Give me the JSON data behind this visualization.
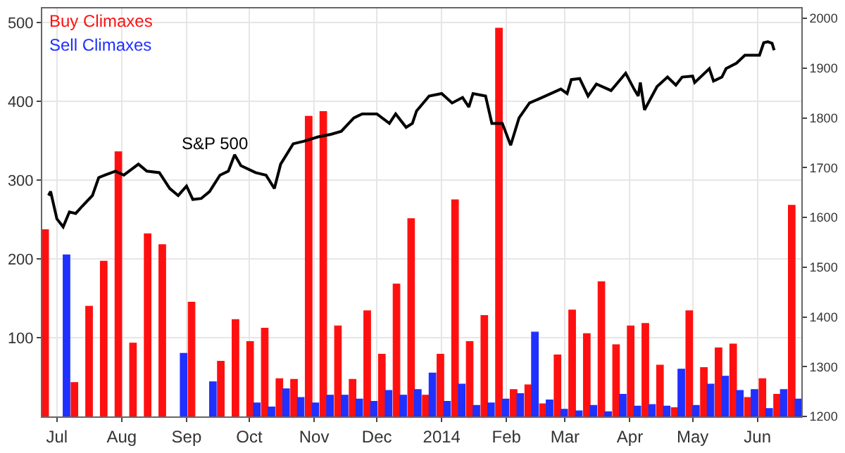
{
  "chart_data": {
    "type": "bar",
    "x": [
      "2013-06-27",
      "2013-07-04",
      "2013-07-11",
      "2013-07-18",
      "2013-07-25",
      "2013-08-01",
      "2013-08-08",
      "2013-08-15",
      "2013-08-22",
      "2013-08-29",
      "2013-09-05",
      "2013-09-12",
      "2013-09-19",
      "2013-09-26",
      "2013-10-03",
      "2013-10-10",
      "2013-10-17",
      "2013-10-24",
      "2013-10-31",
      "2013-11-07",
      "2013-11-14",
      "2013-11-21",
      "2013-11-28",
      "2013-12-05",
      "2013-12-12",
      "2013-12-19",
      "2013-12-26",
      "2014-01-02",
      "2014-01-09",
      "2014-01-16",
      "2014-01-23",
      "2014-01-30",
      "2014-02-06",
      "2014-02-13",
      "2014-02-20",
      "2014-02-27",
      "2014-03-06",
      "2014-03-13",
      "2014-03-20",
      "2014-03-27",
      "2014-04-03",
      "2014-04-10",
      "2014-04-17",
      "2014-04-24",
      "2014-05-01",
      "2014-05-08",
      "2014-05-15",
      "2014-05-22",
      "2014-05-29",
      "2014-06-05",
      "2014-06-12",
      "2014-06-19"
    ],
    "series": [
      {
        "name": "Buy Climaxes",
        "color": "#ff1010",
        "values": [
          237,
          null,
          43,
          140,
          197,
          336,
          93,
          232,
          218,
          null,
          145,
          null,
          70,
          123,
          95,
          112,
          48,
          47,
          381,
          387,
          115,
          47,
          134,
          79,
          168,
          251,
          27,
          79,
          275,
          95,
          128,
          493,
          34,
          40,
          16,
          78,
          135,
          105,
          171,
          91,
          115,
          118,
          65,
          11,
          134,
          62,
          87,
          92,
          24,
          48,
          28,
          268
        ]
      },
      {
        "name": "Sell Climaxes",
        "color": "#2030ff",
        "values": [
          null,
          205,
          null,
          null,
          null,
          null,
          null,
          null,
          null,
          80,
          null,
          44,
          null,
          null,
          17,
          12,
          35,
          24,
          17,
          27,
          27,
          22,
          19,
          33,
          27,
          34,
          55,
          19,
          41,
          14,
          17,
          22,
          29,
          107,
          21,
          9,
          7,
          14,
          6,
          28,
          13,
          15,
          13,
          60,
          14,
          41,
          51,
          33,
          34,
          10,
          34,
          22
        ]
      },
      {
        "name": "S&P 500",
        "color": "#000000",
        "type": "line",
        "axis": "y2",
        "x": [
          "2013-06-27",
          "2013-06-28",
          "2013-07-01",
          "2013-07-04",
          "2013-07-07",
          "2013-07-10",
          "2013-07-13",
          "2013-07-18",
          "2013-07-21",
          "2013-07-24",
          "2013-07-29",
          "2013-08-02",
          "2013-08-09",
          "2013-08-13",
          "2013-08-19",
          "2013-08-24",
          "2013-08-28",
          "2013-09-01",
          "2013-09-04",
          "2013-09-08",
          "2013-09-12",
          "2013-09-17",
          "2013-09-21",
          "2013-09-24",
          "2013-09-27",
          "2013-10-04",
          "2013-10-09",
          "2013-10-13",
          "2013-10-16",
          "2013-10-22",
          "2013-10-27",
          "2013-11-03",
          "2013-11-09",
          "2013-11-14",
          "2013-11-20",
          "2013-11-24",
          "2013-12-01",
          "2013-12-07",
          "2013-12-10",
          "2013-12-15",
          "2013-12-18",
          "2013-12-20",
          "2013-12-26",
          "2014-01-01",
          "2014-01-06",
          "2014-01-11",
          "2014-01-14",
          "2014-01-16",
          "2014-01-22",
          "2014-01-25",
          "2014-01-30",
          "2014-02-03",
          "2014-02-07",
          "2014-02-12",
          "2014-02-18",
          "2014-02-27",
          "2014-03-02",
          "2014-03-04",
          "2014-03-08",
          "2014-03-12",
          "2014-03-16",
          "2014-03-23",
          "2014-03-30",
          "2014-04-03",
          "2014-04-05",
          "2014-04-06",
          "2014-04-08",
          "2014-04-14",
          "2014-04-19",
          "2014-04-23",
          "2014-04-26",
          "2014-05-01",
          "2014-05-02",
          "2014-05-09",
          "2014-05-11",
          "2014-05-15",
          "2014-05-17",
          "2014-05-22",
          "2014-05-26",
          "2014-06-02",
          "2014-06-04",
          "2014-06-06",
          "2014-06-08",
          "2014-06-09"
        ],
        "values": [
          1644,
          1652,
          1597,
          1581,
          1611,
          1608,
          1622,
          1644,
          1680,
          1685,
          1693,
          1685,
          1707,
          1693,
          1690,
          1658,
          1644,
          1663,
          1636,
          1638,
          1652,
          1685,
          1693,
          1726,
          1704,
          1690,
          1685,
          1658,
          1707,
          1748,
          1753,
          1762,
          1767,
          1773,
          1800,
          1808,
          1808,
          1789,
          1808,
          1781,
          1789,
          1814,
          1844,
          1849,
          1830,
          1841,
          1822,
          1849,
          1844,
          1789,
          1789,
          1745,
          1800,
          1830,
          1841,
          1858,
          1849,
          1877,
          1879,
          1844,
          1868,
          1855,
          1890,
          1858,
          1844,
          1871,
          1816,
          1863,
          1882,
          1866,
          1882,
          1884,
          1871,
          1899,
          1874,
          1882,
          1899,
          1910,
          1926,
          1926,
          1951,
          1953,
          1950,
          1936
        ]
      }
    ],
    "xlim": [
      "2013-06-24",
      "2014-06-22"
    ],
    "xticks": [
      {
        "value": "2013-07-01",
        "label": "Jul"
      },
      {
        "value": "2013-08-01",
        "label": "Aug"
      },
      {
        "value": "2013-09-01",
        "label": "Sep"
      },
      {
        "value": "2013-10-01",
        "label": "Oct"
      },
      {
        "value": "2013-11-01",
        "label": "Nov"
      },
      {
        "value": "2013-12-01",
        "label": "Dec"
      },
      {
        "value": "2014-01-01",
        "label": "2014"
      },
      {
        "value": "2014-02-01",
        "label": "Feb"
      },
      {
        "value": "2014-03-01",
        "label": "Mar"
      },
      {
        "value": "2014-04-01",
        "label": "Apr"
      },
      {
        "value": "2014-05-01",
        "label": "May"
      },
      {
        "value": "2014-06-01",
        "label": "Jun"
      }
    ],
    "ylim": [
      0,
      518
    ],
    "yticks": [
      100,
      200,
      300,
      400,
      500
    ],
    "y2lim": [
      1200,
      2020
    ],
    "y2ticks": [
      1200,
      1300,
      1400,
      1500,
      1600,
      1700,
      1800,
      1900,
      2000
    ],
    "grid": true,
    "legend": "top left",
    "marker": "none",
    "line_style": "solid"
  }
}
